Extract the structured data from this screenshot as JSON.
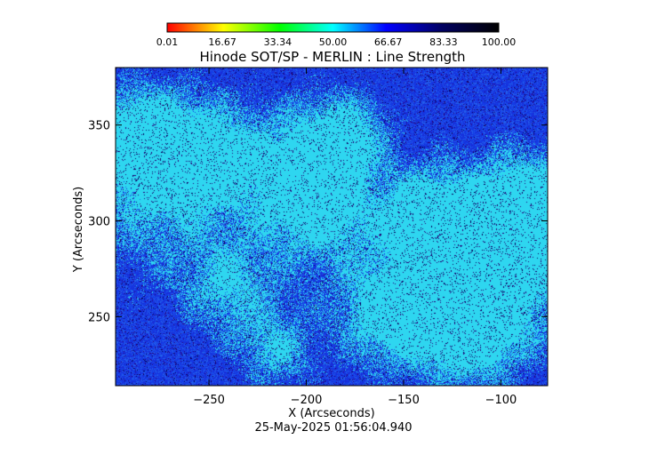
{
  "chart_data": {
    "type": "heatmap",
    "title": "Hinode SOT/SP - MERLIN : Line Strength",
    "xlabel": "X (Arcseconds)",
    "ylabel": "Y (Arcseconds)",
    "timestamp": "25-May-2025 01:56:04.940",
    "xlim": [
      -298,
      -76
    ],
    "ylim": [
      214,
      380
    ],
    "x_ticks": [
      {
        "value": -250,
        "label": "−250"
      },
      {
        "value": -200,
        "label": "−200"
      },
      {
        "value": -150,
        "label": "−150"
      },
      {
        "value": -100,
        "label": "−100"
      }
    ],
    "y_ticks": [
      {
        "value": 250,
        "label": "250"
      },
      {
        "value": 300,
        "label": "300"
      },
      {
        "value": 350,
        "label": "350"
      }
    ],
    "colorbar": {
      "min": 0.01,
      "max": 100.0,
      "tick_labels": [
        "0.01",
        "16.67",
        "33.34",
        "50.00",
        "66.67",
        "83.33",
        "100.00"
      ],
      "colors": [
        "#ff0000",
        "#ffff00",
        "#00ff00",
        "#00ffff",
        "#0000ff",
        "#000060",
        "#000000"
      ]
    },
    "map_colors": {
      "bright_region": "#2ed8f0",
      "mid_region": "#2060e8",
      "dark_region": "#1030d0",
      "speckle": "#200070"
    }
  }
}
